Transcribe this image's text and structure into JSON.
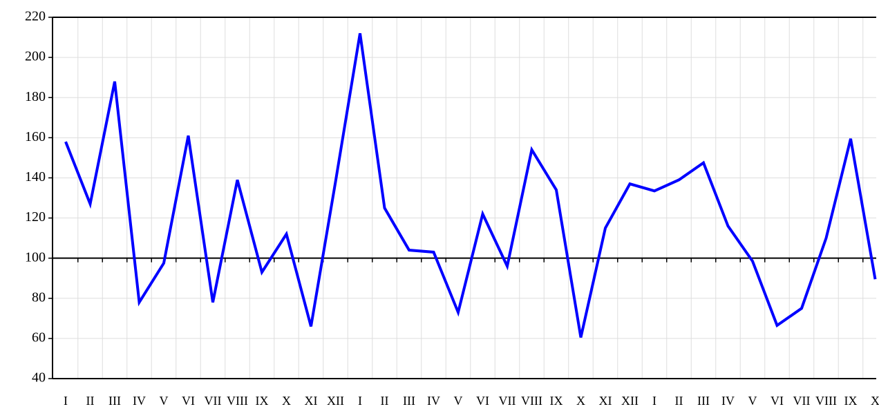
{
  "chart_data": {
    "type": "line",
    "categories": [
      "I",
      "II",
      "III",
      "IV",
      "V",
      "VI",
      "VII",
      "VIII",
      "IX",
      "X",
      "XI",
      "XII",
      "I",
      "II",
      "III",
      "IV",
      "V",
      "VI",
      "VII",
      "VIII",
      "IX",
      "X",
      "XI",
      "XII",
      "I",
      "II",
      "III",
      "IV",
      "V",
      "VI",
      "VII",
      "VIII",
      "IX",
      "X"
    ],
    "series": [
      {
        "color": "#0000ff",
        "values": [
          158,
          127,
          188,
          78,
          97.5,
          161,
          78,
          139,
          93,
          112,
          66,
          138,
          212,
          125,
          104,
          103,
          73,
          122,
          96,
          154,
          134,
          60.5,
          115,
          137,
          133.5,
          139,
          147.5,
          116,
          98.5,
          66.5,
          75,
          110,
          159.5,
          89.5
        ]
      }
    ],
    "ylim": [
      40,
      220
    ],
    "yticks": [
      40,
      60,
      80,
      100,
      120,
      140,
      160,
      180,
      200,
      220
    ],
    "x_axis_at": 100,
    "grid": true
  }
}
